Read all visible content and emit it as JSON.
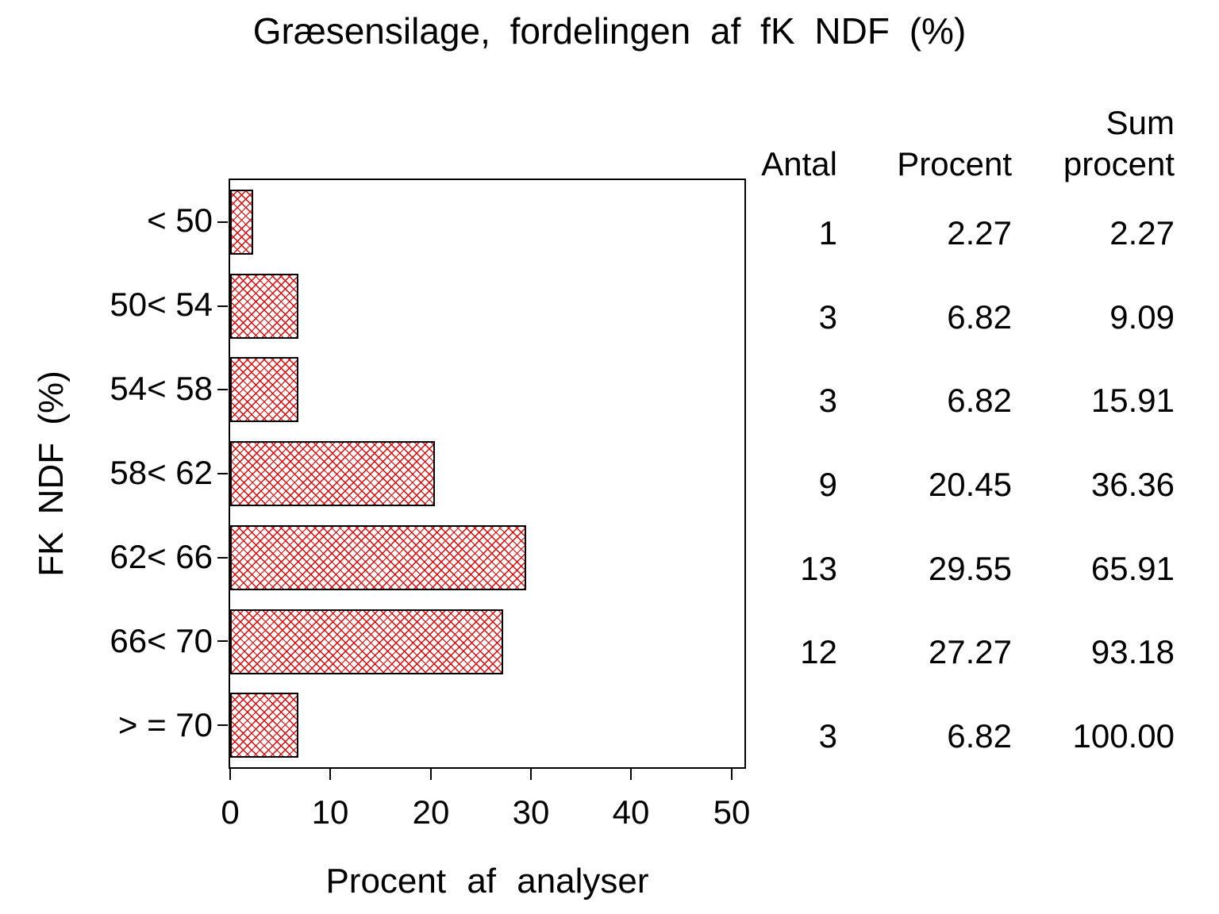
{
  "title": "Græsensilage, fordelingen af fK NDF (%)",
  "chart_data": {
    "type": "bar",
    "orientation": "horizontal",
    "title": "Græsensilage, fordelingen af fK NDF (%)",
    "categories": [
      "< 50",
      "50< 54",
      "54< 58",
      "58< 62",
      "62< 66",
      "66< 70",
      "> = 70"
    ],
    "values": [
      2.27,
      6.82,
      6.82,
      20.45,
      29.55,
      27.27,
      6.82
    ],
    "xlabel": "Procent af analyser",
    "ylabel": "FK NDF (%)",
    "xticks": [
      0,
      10,
      20,
      30,
      40,
      50
    ],
    "xlim": [
      0,
      51.3
    ],
    "grid": false,
    "legend": "none",
    "bar_color": "#ee0000",
    "bar_pattern": "crosshatch",
    "bar_border_color": "#000000"
  },
  "table": {
    "col1_header": "Antal",
    "col2_header": "Procent",
    "col3_header_line1": "Sum",
    "col3_header_line2": "procent",
    "rows": [
      {
        "antal": "1",
        "procent": "2.27",
        "sum_procent": "2.27"
      },
      {
        "antal": "3",
        "procent": "6.82",
        "sum_procent": "9.09"
      },
      {
        "antal": "3",
        "procent": "6.82",
        "sum_procent": "15.91"
      },
      {
        "antal": "9",
        "procent": "20.45",
        "sum_procent": "36.36"
      },
      {
        "antal": "13",
        "procent": "29.55",
        "sum_procent": "65.91"
      },
      {
        "antal": "12",
        "procent": "27.27",
        "sum_procent": "93.18"
      },
      {
        "antal": "3",
        "procent": "6.82",
        "sum_procent": "100.00"
      }
    ]
  }
}
